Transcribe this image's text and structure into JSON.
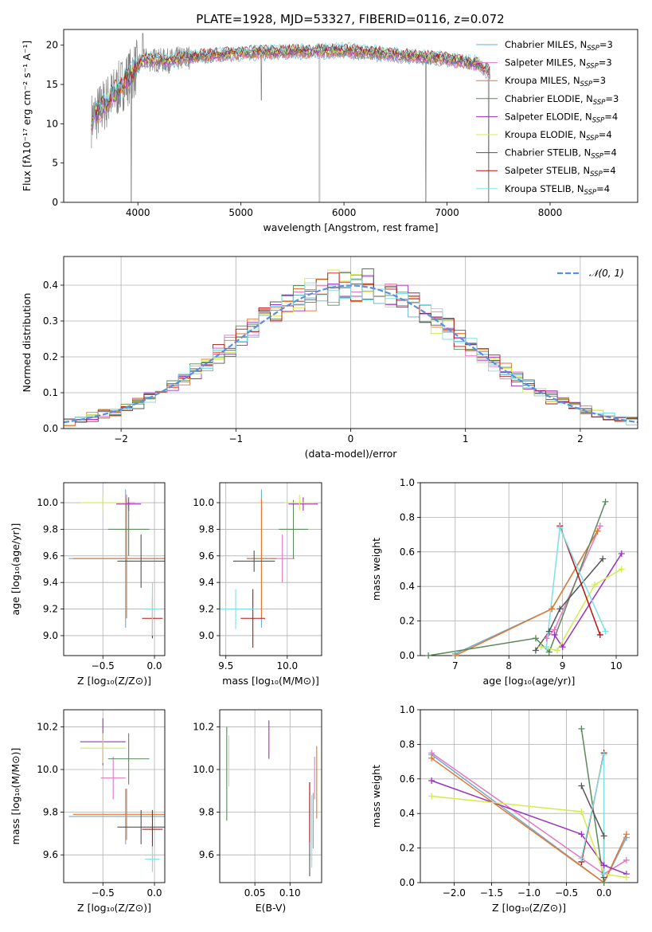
{
  "title": "PLATE=1928, MJD=53327, FIBERID=0116, z=0.072",
  "colors": {
    "Chabrier MILES": "#6baed6",
    "Salpeter MILES": "#e377c2",
    "Kroupa MILES": "#e6762b",
    "Chabrier ELODIE": "#5a8a5a",
    "Salpeter ELODIE": "#9b30c0",
    "Kroupa ELODIE": "#d4ec4a",
    "Chabrier STELIB": "#555555",
    "Salpeter STELIB": "#b81414",
    "Kroupa STELIB": "#7ee0e6",
    "data": "#808080",
    "grid": "#b0b0b0",
    "gaussian": "#5b8fd9"
  },
  "legend_labels": [
    {
      "pre": "Chabrier MILES, N",
      "sub": "SSP",
      "post": "=3"
    },
    {
      "pre": "Salpeter MILES, N",
      "sub": "SSP",
      "post": "=3"
    },
    {
      "pre": "Kroupa MILES, N",
      "sub": "SSP",
      "post": "=3"
    },
    {
      "pre": "Chabrier ELODIE, N",
      "sub": "SSP",
      "post": "=3"
    },
    {
      "pre": "Salpeter ELODIE, N",
      "sub": "SSP",
      "post": "=4"
    },
    {
      "pre": "Kroupa ELODIE, N",
      "sub": "SSP",
      "post": "=4"
    },
    {
      "pre": "Chabrier STELIB, N",
      "sub": "SSP",
      "post": "=4"
    },
    {
      "pre": "Salpeter STELIB, N",
      "sub": "SSP",
      "post": "=4"
    },
    {
      "pre": "Kroupa STELIB, N",
      "sub": "SSP",
      "post": "=4"
    }
  ],
  "labels": {
    "spec_x": "wavelength [Angstrom, rest frame]",
    "spec_y": "Flux [fλ10⁻¹⁷ erg cm⁻² s⁻¹ A⁻¹]",
    "hist_x": "(data-model)/error",
    "hist_y": "Normed distribution",
    "hist_legend": "𝒩(0, 1)",
    "age_y": "age  [log₁₀(age/yr)]",
    "Z_x": "Z [log₁₀(Z/Z⊙)]",
    "mass_x": "mass [log₁₀(M/M⊙)]",
    "mass_y": "mass [log₁₀(M/M⊙)]",
    "ebv_x": "E(B-V)",
    "age_x": "age  [log₁₀(age/yr)]",
    "weight_y": "mass weight"
  },
  "chart_data": [
    {
      "type": "line",
      "title": "PLATE=1928, MJD=53327, FIBERID=0116, z=0.072",
      "xlabel": "wavelength [Angstrom, rest frame]",
      "ylabel": "Flux [fλ10⁻¹⁷ erg cm⁻² s⁻¹ A⁻¹]",
      "xlim": [
        3280,
        8850
      ],
      "ylim": [
        0,
        22
      ],
      "xticks": [
        4000,
        5000,
        6000,
        7000,
        8000
      ],
      "yticks": [
        0,
        5,
        10,
        15,
        20
      ],
      "legend_position": "upper right",
      "continuum": {
        "wavelength": [
          3550,
          3700,
          3850,
          3950,
          4050,
          4300,
          4500,
          5000,
          5500,
          6000,
          6500,
          7000,
          7300,
          7420
        ],
        "flux": [
          10.5,
          12.8,
          15.0,
          16.5,
          18.2,
          18.0,
          18.5,
          19.0,
          19.2,
          19.3,
          18.8,
          18.2,
          17.6,
          16.5
        ]
      }
    },
    {
      "type": "bar",
      "xlabel": "(data-model)/error",
      "ylabel": "Normed distribution",
      "xlim": [
        -2.5,
        2.5
      ],
      "ylim": [
        0,
        0.48
      ],
      "xticks": [
        -2,
        -1,
        0,
        1,
        2
      ],
      "yticks": [
        0,
        0.1,
        0.2,
        0.3,
        0.4
      ],
      "bin_width": 0.1,
      "gaussian": {
        "name": "𝒩(0, 1)",
        "mu": 0,
        "sigma": 1
      }
    },
    {
      "type": "scatter",
      "xlabel": "Z [log₁₀(Z/Z⊙)]",
      "ylabel": "age  [log₁₀(age/yr)]",
      "xlim": [
        -0.88,
        0.1
      ],
      "ylim": [
        8.85,
        10.15
      ],
      "xticks": [
        -0.5,
        0.0
      ],
      "yticks": [
        9.0,
        9.2,
        9.4,
        9.6,
        9.8,
        10.0
      ],
      "points": [
        {
          "s": "Chabrier MILES",
          "x": -0.28,
          "y": 9.58,
          "xe": 0.55,
          "ye": 0.52
        },
        {
          "s": "Salpeter MILES",
          "x": -0.27,
          "y": 10.0,
          "xe": 0.08,
          "ye": 0.06
        },
        {
          "s": "Kroupa MILES",
          "x": -0.27,
          "y": 9.58,
          "xe": 0.52,
          "ye": 0.45
        },
        {
          "s": "Chabrier ELODIE",
          "x": -0.25,
          "y": 9.8,
          "xe": 0.2,
          "ye": 0.2
        },
        {
          "s": "Salpeter ELODIE",
          "x": -0.25,
          "y": 9.99,
          "xe": 0.12,
          "ye": 0.05
        },
        {
          "s": "Kroupa ELODIE",
          "x": -0.5,
          "y": 10.0,
          "xe": 0.22,
          "ye": 0.06
        },
        {
          "s": "Chabrier STELIB",
          "x": -0.13,
          "y": 9.56,
          "xe": 0.23,
          "ye": 0.2
        },
        {
          "s": "Salpeter STELIB",
          "x": -0.02,
          "y": 9.13,
          "xe": 0.1,
          "ye": 0.15
        },
        {
          "s": "Kroupa STELIB",
          "x": -0.02,
          "y": 9.2,
          "xe": 0.07,
          "ye": 0.2
        }
      ]
    },
    {
      "type": "scatter",
      "xlabel": "mass [log₁₀(M/M⊙)]",
      "xlim": [
        9.45,
        10.28
      ],
      "ylim": [
        8.85,
        10.15
      ],
      "xticks": [
        9.5,
        10.0
      ],
      "yticks": [
        9.0,
        9.2,
        9.4,
        9.6,
        9.8,
        10.0
      ],
      "points": [
        {
          "s": "Chabrier MILES",
          "x": 9.79,
          "y": 9.58,
          "xe": 0.12,
          "ye": 0.52
        },
        {
          "s": "Salpeter MILES",
          "x": 9.96,
          "y": 9.58,
          "xe": 0.1,
          "ye": 0.18
        },
        {
          "s": "Kroupa MILES",
          "x": 9.79,
          "y": 9.58,
          "xe": 0.12,
          "ye": 0.45
        },
        {
          "s": "Chabrier ELODIE",
          "x": 10.05,
          "y": 9.8,
          "xe": 0.12,
          "ye": 0.22
        },
        {
          "s": "Salpeter ELODIE",
          "x": 10.13,
          "y": 9.99,
          "xe": 0.12,
          "ye": 0.05
        },
        {
          "s": "Kroupa ELODIE",
          "x": 10.1,
          "y": 10.0,
          "xe": 0.12,
          "ye": 0.06
        },
        {
          "s": "Chabrier STELIB",
          "x": 9.73,
          "y": 9.56,
          "xe": 0.17,
          "ye": 0.08
        },
        {
          "s": "Salpeter STELIB",
          "x": 9.72,
          "y": 9.13,
          "xe": 0.1,
          "ye": 0.22
        },
        {
          "s": "Kroupa STELIB",
          "x": 9.58,
          "y": 9.2,
          "xe": 0.17,
          "ye": 0.15
        }
      ]
    },
    {
      "type": "line",
      "xlabel": "age  [log₁₀(age/yr)]",
      "ylabel": "mass weight",
      "xlim": [
        6.35,
        10.4
      ],
      "ylim": [
        0,
        1.0
      ],
      "xticks": [
        7,
        8,
        9,
        10
      ],
      "yticks": [
        0.0,
        0.2,
        0.4,
        0.6,
        0.8,
        1.0
      ],
      "series": [
        {
          "s": "Chabrier MILES",
          "points": [
            [
              7.0,
              0.01
            ],
            [
              8.8,
              0.27
            ],
            [
              9.65,
              0.72
            ]
          ]
        },
        {
          "s": "Salpeter MILES",
          "points": [
            [
              8.7,
              0.1
            ],
            [
              8.85,
              0.15
            ],
            [
              9.7,
              0.75
            ]
          ]
        },
        {
          "s": "Kroupa MILES",
          "points": [
            [
              7.0,
              0.0
            ],
            [
              8.8,
              0.27
            ],
            [
              9.65,
              0.72
            ]
          ]
        },
        {
          "s": "Chabrier ELODIE",
          "points": [
            [
              6.5,
              0.0
            ],
            [
              8.5,
              0.1
            ],
            [
              8.75,
              0.02
            ],
            [
              9.8,
              0.89
            ]
          ]
        },
        {
          "s": "Salpeter ELODIE",
          "points": [
            [
              8.85,
              0.12
            ],
            [
              9.0,
              0.05
            ],
            [
              10.1,
              0.59
            ]
          ]
        },
        {
          "s": "Kroupa ELODIE",
          "points": [
            [
              8.6,
              0.05
            ],
            [
              8.9,
              0.03
            ],
            [
              9.6,
              0.41
            ],
            [
              10.1,
              0.5
            ]
          ]
        },
        {
          "s": "Chabrier STELIB",
          "points": [
            [
              8.5,
              0.03
            ],
            [
              8.75,
              0.14
            ],
            [
              8.95,
              0.27
            ],
            [
              9.75,
              0.56
            ]
          ]
        },
        {
          "s": "Salpeter STELIB",
          "points": [
            [
              8.95,
              0.75
            ],
            [
              9.7,
              0.12
            ]
          ]
        },
        {
          "s": "Kroupa STELIB",
          "points": [
            [
              8.7,
              0.05
            ],
            [
              8.95,
              0.74
            ],
            [
              9.8,
              0.14
            ]
          ]
        }
      ]
    },
    {
      "type": "scatter",
      "xlabel": "Z [log₁₀(Z/Z⊙)]",
      "ylabel": "mass [log₁₀(M/M⊙)]",
      "xlim": [
        -0.88,
        0.1
      ],
      "ylim": [
        9.47,
        10.28
      ],
      "xticks": [
        -0.5,
        0.0
      ],
      "yticks": [
        9.6,
        9.8,
        10.0,
        10.2
      ],
      "points": [
        {
          "s": "Chabrier MILES",
          "x": -0.28,
          "y": 9.78,
          "xe": 0.55,
          "ye": 0.13
        },
        {
          "s": "Salpeter MILES",
          "x": -0.4,
          "y": 9.96,
          "xe": 0.12,
          "ye": 0.1
        },
        {
          "s": "Kroupa MILES",
          "x": -0.27,
          "y": 9.79,
          "xe": 0.52,
          "ye": 0.12
        },
        {
          "s": "Chabrier ELODIE",
          "x": -0.25,
          "y": 10.05,
          "xe": 0.2,
          "ye": 0.12
        },
        {
          "s": "Salpeter ELODIE",
          "x": -0.5,
          "y": 10.13,
          "xe": 0.22,
          "ye": 0.11
        },
        {
          "s": "Kroupa ELODIE",
          "x": -0.5,
          "y": 10.1,
          "xe": 0.22,
          "ye": 0.07
        },
        {
          "s": "Chabrier STELIB",
          "x": -0.13,
          "y": 9.73,
          "xe": 0.23,
          "ye": 0.08
        },
        {
          "s": "Salpeter STELIB",
          "x": -0.02,
          "y": 9.72,
          "xe": 0.1,
          "ye": 0.09
        },
        {
          "s": "Kroupa STELIB",
          "x": -0.02,
          "y": 9.58,
          "xe": 0.07,
          "ye": 0.06
        }
      ]
    },
    {
      "type": "scatter",
      "xlabel": "E(B-V)",
      "xlim": [
        0.0,
        0.145
      ],
      "ylim": [
        9.47,
        10.28
      ],
      "xticks": [
        0.05,
        0.1
      ],
      "yticks": [
        9.6,
        9.8,
        10.0,
        10.2
      ],
      "points": [
        {
          "s": "Chabrier MILES",
          "x": 0.133,
          "y": 9.76,
          "ye": 0.13
        },
        {
          "s": "Salpeter MILES",
          "x": 0.135,
          "y": 9.96,
          "ye": 0.1
        },
        {
          "s": "Kroupa MILES",
          "x": 0.138,
          "y": 9.94,
          "ye": 0.17
        },
        {
          "s": "Chabrier ELODIE",
          "x": 0.01,
          "y": 9.98,
          "ye": 0.22
        },
        {
          "s": "Salpeter ELODIE",
          "x": 0.07,
          "y": 10.14,
          "ye": 0.09
        },
        {
          "s": "Kroupa ELODIE",
          "x": 0.013,
          "y": 10.04,
          "ye": 0.12
        },
        {
          "s": "Chabrier STELIB",
          "x": 0.128,
          "y": 9.72,
          "ye": 0.22
        },
        {
          "s": "Salpeter STELIB",
          "x": 0.128,
          "y": 9.8,
          "ye": 0.14
        },
        {
          "s": "Kroupa STELIB",
          "x": 0.131,
          "y": 9.71,
          "ye": 0.17
        }
      ]
    },
    {
      "type": "line",
      "xlabel": "Z [log₁₀(Z/Z⊙)]",
      "ylabel": "mass weight",
      "xlim": [
        -2.45,
        0.45
      ],
      "ylim": [
        0,
        1.0
      ],
      "xticks": [
        -2.0,
        -1.5,
        -1.0,
        -0.5,
        0.0
      ],
      "yticks": [
        0.0,
        0.2,
        0.4,
        0.6,
        0.8,
        1.0
      ],
      "series": [
        {
          "s": "Chabrier MILES",
          "points": [
            [
              -2.3,
              0.74
            ],
            [
              0.0,
              0.0
            ],
            [
              0.3,
              0.26
            ]
          ]
        },
        {
          "s": "Salpeter MILES",
          "points": [
            [
              -2.3,
              0.75
            ],
            [
              0.0,
              0.05
            ],
            [
              0.3,
              0.13
            ]
          ]
        },
        {
          "s": "Kroupa MILES",
          "points": [
            [
              -2.3,
              0.72
            ],
            [
              0.0,
              0.0
            ],
            [
              0.3,
              0.28
            ]
          ]
        },
        {
          "s": "Chabrier ELODIE",
          "points": [
            [
              -0.3,
              0.89
            ],
            [
              0.0,
              0.0
            ]
          ]
        },
        {
          "s": "Salpeter ELODIE",
          "points": [
            [
              -2.3,
              0.59
            ],
            [
              -0.3,
              0.28
            ],
            [
              0.0,
              0.1
            ],
            [
              0.3,
              0.05
            ]
          ]
        },
        {
          "s": "Kroupa ELODIE",
          "points": [
            [
              -2.3,
              0.5
            ],
            [
              -0.3,
              0.41
            ],
            [
              0.0,
              0.05
            ],
            [
              0.3,
              0.03
            ]
          ]
        },
        {
          "s": "Chabrier STELIB",
          "points": [
            [
              -0.3,
              0.56
            ],
            [
              0.0,
              0.27
            ],
            [
              0.0,
              0.03
            ]
          ]
        },
        {
          "s": "Salpeter STELIB",
          "points": [
            [
              -0.3,
              0.12
            ],
            [
              0.0,
              0.75
            ]
          ]
        },
        {
          "s": "Kroupa STELIB",
          "points": [
            [
              -0.3,
              0.14
            ],
            [
              0.0,
              0.74
            ],
            [
              0.0,
              0.05
            ]
          ]
        }
      ]
    }
  ]
}
